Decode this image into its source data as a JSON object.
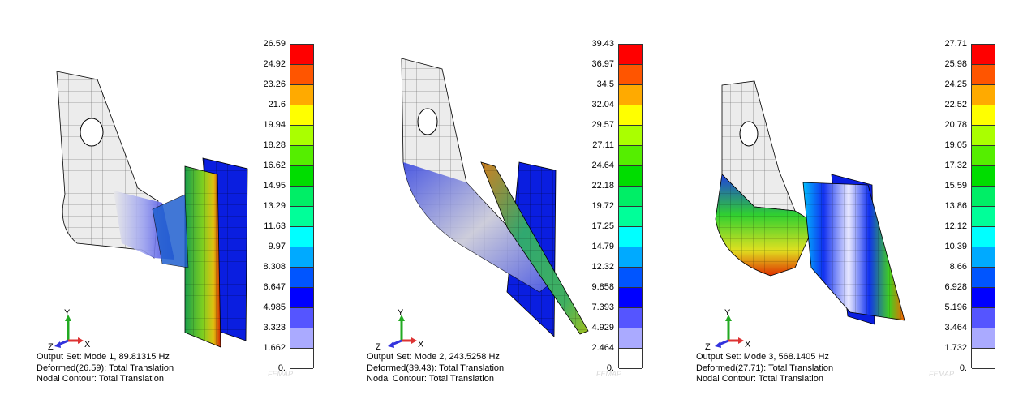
{
  "panels": [
    {
      "colorbar_ticks": [
        "26.59",
        "24.92",
        "23.26",
        "21.6",
        "19.94",
        "18.28",
        "16.62",
        "14.95",
        "13.29",
        "11.63",
        "9.97",
        "8.308",
        "6.647",
        "4.985",
        "3.323",
        "1.662",
        "0."
      ],
      "captions": [
        "Output Set: Mode 1, 89.81315 Hz",
        "Deformed(26.59): Total Translation",
        "Nodal Contour: Total Translation"
      ]
    },
    {
      "colorbar_ticks": [
        "39.43",
        "36.97",
        "34.5",
        "32.04",
        "29.57",
        "27.11",
        "24.64",
        "22.18",
        "19.72",
        "17.25",
        "14.79",
        "12.32",
        "9.858",
        "7.393",
        "4.929",
        "2.464",
        "0."
      ],
      "captions": [
        "Output Set: Mode 2, 243.5258 Hz",
        "Deformed(39.43): Total Translation",
        "Nodal Contour: Total Translation"
      ]
    },
    {
      "colorbar_ticks": [
        "27.71",
        "25.98",
        "24.25",
        "22.52",
        "20.78",
        "19.05",
        "17.32",
        "15.59",
        "13.86",
        "12.12",
        "10.39",
        "8.66",
        "6.928",
        "5.196",
        "3.464",
        "1.732",
        "0."
      ],
      "captions": [
        "Output Set: Mode 3, 568.1405 Hz",
        "Deformed(27.71): Total Translation",
        "Nodal Contour: Total Translation"
      ]
    }
  ],
  "colorbar_colors": [
    "#ff0000",
    "#ff5500",
    "#ffaa00",
    "#ffff00",
    "#aaff00",
    "#55ee00",
    "#00dd00",
    "#00ee66",
    "#00ff99",
    "#00ffff",
    "#00aaff",
    "#0055ff",
    "#0000ff",
    "#5555ff",
    "#aaaaff",
    "#ffffff"
  ],
  "axis_labels": {
    "x": "X",
    "y": "Y",
    "z": "Z"
  },
  "watermark": "FEMAP"
}
